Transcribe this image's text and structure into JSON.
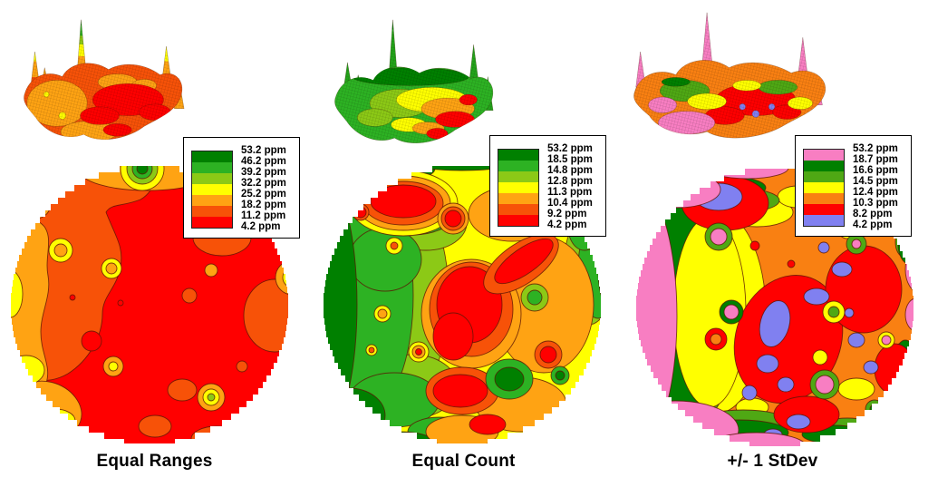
{
  "panels": [
    {
      "caption": "Equal Ranges",
      "legend": {
        "labels": [
          "53.2 ppm",
          "46.2 ppm",
          "39.2 ppm",
          "32.2 ppm",
          "25.2 ppm",
          "18.2 ppm",
          "11.2 ppm",
          "4.2 ppm"
        ],
        "colors": [
          "#008000",
          "#2DB223",
          "#8CC916",
          "#FFFF00",
          "#FFA313",
          "#F75208",
          "#FF0000"
        ]
      }
    },
    {
      "caption": "Equal Count",
      "legend": {
        "labels": [
          "53.2 ppm",
          "18.5 ppm",
          "14.8 ppm",
          "12.8 ppm",
          "11.3 ppm",
          "10.4 ppm",
          "9.2 ppm",
          "4.2 ppm"
        ],
        "colors": [
          "#008000",
          "#2DB223",
          "#8CC916",
          "#FFFF00",
          "#FFA313",
          "#F75208",
          "#FF0000"
        ]
      }
    },
    {
      "caption": "+/- 1 StDev",
      "legend": {
        "labels": [
          "53.2 ppm",
          "18.7 ppm",
          "16.6 ppm",
          "14.5 ppm",
          "12.4 ppm",
          "10.3 ppm",
          "8.2 ppm",
          "4.2 ppm"
        ],
        "colors": [
          "#F87EC2",
          "#008000",
          "#4FA814",
          "#FFFF00",
          "#F98012",
          "#FF0000",
          "#8080F0"
        ]
      }
    }
  ],
  "chart_data": [
    {
      "type": "heatmap",
      "subtype": "classified-contour-map-with-3d-surface",
      "title": "Equal Ranges",
      "units": "ppm",
      "value_range": [
        4.2,
        53.2
      ],
      "class_breaks": [
        4.2,
        11.2,
        18.2,
        25.2,
        32.2,
        39.2,
        46.2,
        53.2
      ],
      "class_colors_low_to_high": [
        "#FF0000",
        "#F75208",
        "#FFA313",
        "#FFFF00",
        "#8CC916",
        "#2DB223",
        "#008000"
      ],
      "legend_position": "top-right",
      "pattern": "circular field map dominated by the two lowest classes (red and orange-red); lighter orange and yellow along the west edge; one small green peak at the top edge and tiny green/yellow hotspots"
    },
    {
      "type": "heatmap",
      "subtype": "classified-contour-map-with-3d-surface",
      "title": "Equal Count",
      "units": "ppm",
      "value_range": [
        4.2,
        53.2
      ],
      "class_breaks": [
        4.2,
        9.2,
        10.4,
        11.3,
        12.8,
        14.8,
        18.5,
        53.2
      ],
      "class_colors_low_to_high": [
        "#FF0000",
        "#F75208",
        "#FFA313",
        "#FFFF00",
        "#8CC916",
        "#2DB223",
        "#008000"
      ],
      "legend_position": "top-right",
      "pattern": "classes hold roughly equal area: greens over the west half, yellow transition band through the middle, red and orange blobs over the center and east"
    },
    {
      "type": "heatmap",
      "subtype": "classified-contour-map-with-3d-surface",
      "title": "+/- 1 StDev",
      "units": "ppm",
      "value_range": [
        4.2,
        53.2
      ],
      "class_breaks": [
        4.2,
        8.2,
        10.3,
        12.4,
        14.5,
        16.6,
        18.7,
        53.2
      ],
      "class_colors_low_to_high": [
        "#8080F0",
        "#FF0000",
        "#F98012",
        "#FFFF00",
        "#4FA814",
        "#008000",
        "#F87EC2"
      ],
      "legend_position": "top-right",
      "pattern": "pink rim of high values along the west and south edges with green/yellow bands inside it; interior mostly orange and red with scattered periwinkle low-value blobs and small pink hotspots"
    }
  ]
}
